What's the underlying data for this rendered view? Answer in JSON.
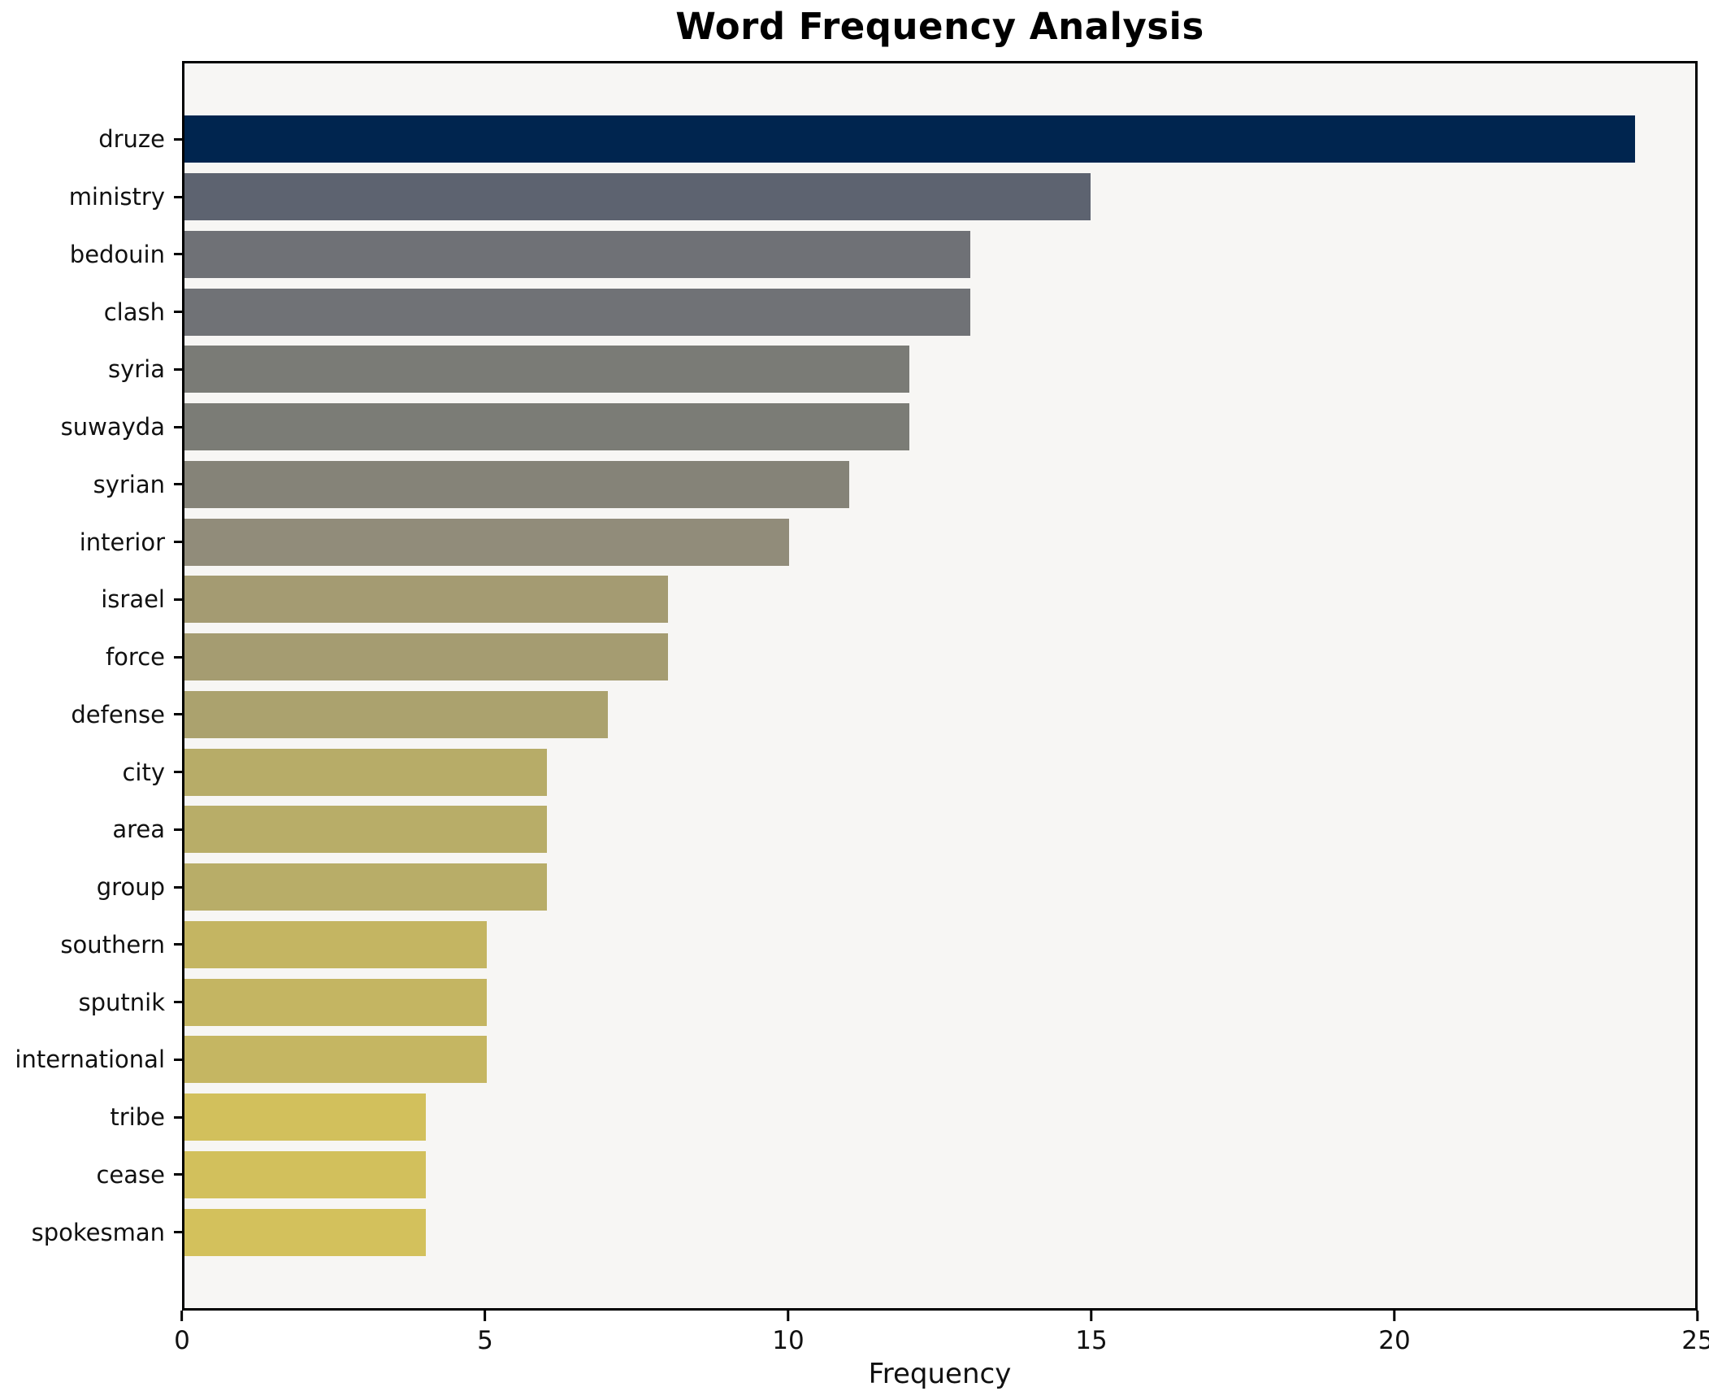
{
  "chart_data": {
    "type": "bar",
    "orientation": "horizontal",
    "title": "Word Frequency Analysis",
    "xlabel": "Frequency",
    "ylabel": "",
    "xlim": [
      0,
      25
    ],
    "xticks": [
      0,
      5,
      10,
      15,
      20,
      25
    ],
    "grid": false,
    "legend": null,
    "plot_background": "#f7f6f4",
    "spine_color": "#000000",
    "categories": [
      "druze",
      "ministry",
      "bedouin",
      "clash",
      "syria",
      "suwayda",
      "syrian",
      "interior",
      "israel",
      "force",
      "defense",
      "city",
      "area",
      "group",
      "southern",
      "sputnik",
      "international",
      "tribe",
      "cease",
      "spokesman"
    ],
    "values": [
      24,
      15,
      13,
      13,
      12,
      12,
      11,
      10,
      8,
      8,
      7,
      6,
      6,
      6,
      5,
      5,
      5,
      4,
      4,
      4
    ],
    "bar_colors": [
      "#00254f",
      "#5d6370",
      "#6f7176",
      "#707276",
      "#7a7b76",
      "#7b7c76",
      "#858378",
      "#918c7a",
      "#a49b72",
      "#a59c71",
      "#aba26e",
      "#b7ac68",
      "#b8ad68",
      "#b8ad68",
      "#c4b562",
      "#c4b562",
      "#c5b662",
      "#d2c05c",
      "#d2c05c",
      "#d3c15c"
    ]
  }
}
